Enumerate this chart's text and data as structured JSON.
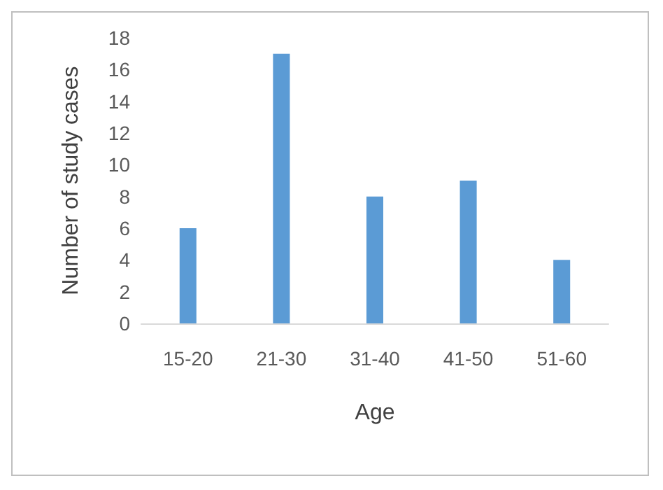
{
  "chart_data": {
    "type": "bar",
    "xlabel": "Age",
    "ylabel": "Number of study cases",
    "categories": [
      "15-20",
      "21-30",
      "31-40",
      "41-50",
      "51-60"
    ],
    "values": [
      6,
      17,
      8,
      9,
      4
    ],
    "color": "#5b9bd5",
    "ylim": [
      0,
      18
    ],
    "yticks": [
      0,
      2,
      4,
      6,
      8,
      10,
      12,
      14,
      16,
      18
    ],
    "grid": false
  }
}
